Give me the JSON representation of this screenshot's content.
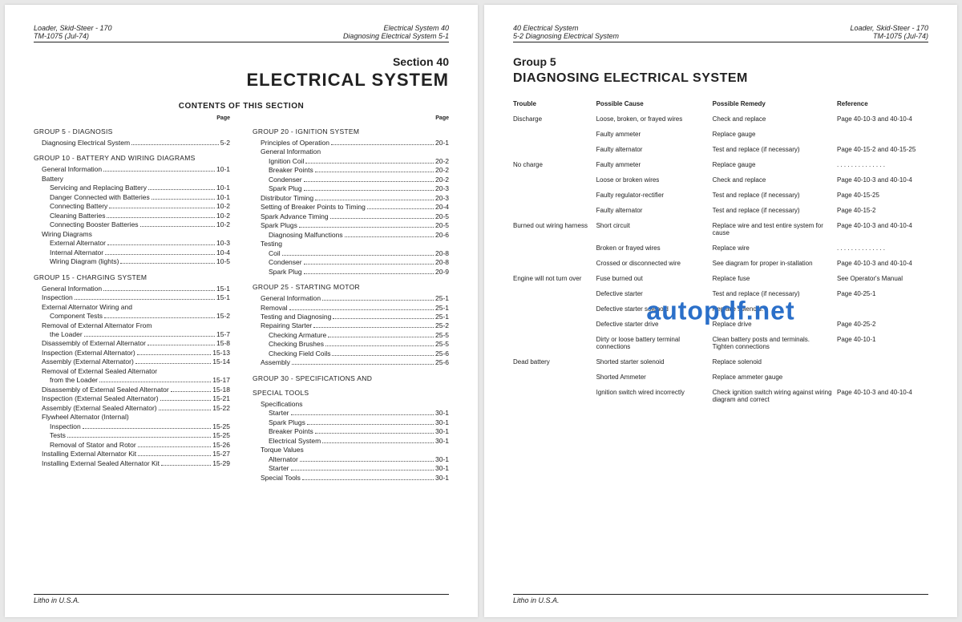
{
  "watermark": "autopdf.net",
  "left": {
    "hdr_tl1": "Loader, Skid-Steer - 170",
    "hdr_tl2": "TM-1075   (Jul-74)",
    "hdr_tr1": "Electrical System    40",
    "hdr_tr2": "Diagnosing Electrical System    5-1",
    "section_no": "Section 40",
    "section_title": "ELECTRICAL SYSTEM",
    "contents_label": "CONTENTS OF THIS SECTION",
    "page_label": "Page",
    "footer": "Litho in U.S.A.",
    "col1": [
      {
        "type": "group",
        "label": "GROUP  5 - DIAGNOSIS"
      },
      {
        "type": "line",
        "indent": 0,
        "label": "Diagnosing Electrical System",
        "pg": "5-2"
      },
      {
        "type": "group",
        "label": "GROUP 10 - BATTERY AND WIRING DIAGRAMS"
      },
      {
        "type": "line",
        "indent": 0,
        "label": "General Information",
        "pg": "10-1"
      },
      {
        "type": "line",
        "indent": 0,
        "label": "Battery",
        "pg": ""
      },
      {
        "type": "line",
        "indent": 1,
        "label": "Servicing and Replacing Battery",
        "pg": "10-1"
      },
      {
        "type": "line",
        "indent": 1,
        "label": "Danger Connected with Batteries",
        "pg": "10-1"
      },
      {
        "type": "line",
        "indent": 1,
        "label": "Connecting Battery",
        "pg": "10-2"
      },
      {
        "type": "line",
        "indent": 1,
        "label": "Cleaning Batteries",
        "pg": "10-2"
      },
      {
        "type": "line",
        "indent": 1,
        "label": "Connecting Booster Batteries",
        "pg": "10-2"
      },
      {
        "type": "line",
        "indent": 0,
        "label": "Wiring Diagrams",
        "pg": ""
      },
      {
        "type": "line",
        "indent": 1,
        "label": "External Alternator",
        "pg": "10-3"
      },
      {
        "type": "line",
        "indent": 1,
        "label": "Internal Alternator",
        "pg": "10-4"
      },
      {
        "type": "line",
        "indent": 1,
        "label": "Wiring Diagram (lights)",
        "pg": "10-5"
      },
      {
        "type": "group",
        "label": "GROUP 15 - CHARGING SYSTEM"
      },
      {
        "type": "line",
        "indent": 0,
        "label": "General Information",
        "pg": "15-1"
      },
      {
        "type": "line",
        "indent": 0,
        "label": "Inspection",
        "pg": "15-1"
      },
      {
        "type": "line",
        "indent": 0,
        "label": "External Alternator Wiring and",
        "pg": ""
      },
      {
        "type": "line",
        "indent": 1,
        "label": "Component Tests",
        "pg": "15-2"
      },
      {
        "type": "line",
        "indent": 0,
        "label": "Removal of External Alternator From",
        "pg": ""
      },
      {
        "type": "line",
        "indent": 1,
        "label": "the Loader",
        "pg": "15-7"
      },
      {
        "type": "line",
        "indent": 0,
        "label": "Disassembly of External Alternator",
        "pg": "15-8"
      },
      {
        "type": "line",
        "indent": 0,
        "label": "Inspection (External Alternator)",
        "pg": "15-13"
      },
      {
        "type": "line",
        "indent": 0,
        "label": "Assembly (External Alternator)",
        "pg": "15-14"
      },
      {
        "type": "line",
        "indent": 0,
        "label": "Removal of External Sealed Alternator",
        "pg": ""
      },
      {
        "type": "line",
        "indent": 1,
        "label": "from the Loader",
        "pg": "15-17"
      },
      {
        "type": "line",
        "indent": 0,
        "label": "Disassembly of External Sealed Alternator",
        "pg": "15-18"
      },
      {
        "type": "line",
        "indent": 0,
        "label": "Inspection (External Sealed Alternator)",
        "pg": "15-21"
      },
      {
        "type": "line",
        "indent": 0,
        "label": "Assembly (External Sealed Alternator)",
        "pg": "15-22"
      },
      {
        "type": "line",
        "indent": 0,
        "label": "Flywheel Alternator (Internal)",
        "pg": ""
      },
      {
        "type": "line",
        "indent": 1,
        "label": "Inspection",
        "pg": "15-25"
      },
      {
        "type": "line",
        "indent": 1,
        "label": "Tests",
        "pg": "15-25"
      },
      {
        "type": "line",
        "indent": 1,
        "label": "Removal of Stator and Rotor",
        "pg": "15-26"
      },
      {
        "type": "line",
        "indent": 0,
        "label": "Installing External Alternator Kit",
        "pg": "15-27"
      },
      {
        "type": "line",
        "indent": 0,
        "label": "Installing External Sealed Alternator Kit",
        "pg": "15-29"
      }
    ],
    "col2": [
      {
        "type": "group",
        "label": "GROUP 20 - IGNITION SYSTEM"
      },
      {
        "type": "line",
        "indent": 0,
        "label": "Principles of Operation",
        "pg": "20-1"
      },
      {
        "type": "line",
        "indent": 0,
        "label": "General Information",
        "pg": ""
      },
      {
        "type": "line",
        "indent": 1,
        "label": "Ignition Coil",
        "pg": "20-2"
      },
      {
        "type": "line",
        "indent": 1,
        "label": "Breaker Points",
        "pg": "20-2"
      },
      {
        "type": "line",
        "indent": 1,
        "label": "Condenser",
        "pg": "20-2"
      },
      {
        "type": "line",
        "indent": 1,
        "label": "Spark Plug",
        "pg": "20-3"
      },
      {
        "type": "line",
        "indent": 0,
        "label": "Distributor Timing",
        "pg": "20-3"
      },
      {
        "type": "line",
        "indent": 0,
        "label": "Setting of Breaker Points to Timing",
        "pg": "20-4"
      },
      {
        "type": "line",
        "indent": 0,
        "label": "Spark Advance Timing",
        "pg": "20-5"
      },
      {
        "type": "line",
        "indent": 0,
        "label": "Spark Plugs",
        "pg": "20-5"
      },
      {
        "type": "line",
        "indent": 1,
        "label": "Diagnosing Malfunctions",
        "pg": "20-6"
      },
      {
        "type": "line",
        "indent": 0,
        "label": "Testing",
        "pg": ""
      },
      {
        "type": "line",
        "indent": 1,
        "label": "Coil",
        "pg": "20-8"
      },
      {
        "type": "line",
        "indent": 1,
        "label": "Condenser",
        "pg": "20-8"
      },
      {
        "type": "line",
        "indent": 1,
        "label": "Spark Plug",
        "pg": "20-9"
      },
      {
        "type": "group",
        "label": "GROUP 25 - STARTING MOTOR"
      },
      {
        "type": "line",
        "indent": 0,
        "label": "General Information",
        "pg": "25-1"
      },
      {
        "type": "line",
        "indent": 0,
        "label": "Removal",
        "pg": "25-1"
      },
      {
        "type": "line",
        "indent": 0,
        "label": "Testing and Diagnosing",
        "pg": "25-1"
      },
      {
        "type": "line",
        "indent": 0,
        "label": "Repairing Starter",
        "pg": "25-2"
      },
      {
        "type": "line",
        "indent": 1,
        "label": "Checking Armature",
        "pg": "25-5"
      },
      {
        "type": "line",
        "indent": 1,
        "label": "Checking Brushes",
        "pg": "25-5"
      },
      {
        "type": "line",
        "indent": 1,
        "label": "Checking Field Coils",
        "pg": "25-6"
      },
      {
        "type": "line",
        "indent": 0,
        "label": "Assembly",
        "pg": "25-6"
      },
      {
        "type": "group",
        "label": "GROUP 30 - SPECIFICATIONS AND"
      },
      {
        "type": "group",
        "label": "          SPECIAL TOOLS"
      },
      {
        "type": "line",
        "indent": 0,
        "label": "Specifications",
        "pg": ""
      },
      {
        "type": "line",
        "indent": 1,
        "label": "Starter",
        "pg": "30-1"
      },
      {
        "type": "line",
        "indent": 1,
        "label": "Spark Plugs",
        "pg": "30-1"
      },
      {
        "type": "line",
        "indent": 1,
        "label": "Breaker Points",
        "pg": "30-1"
      },
      {
        "type": "line",
        "indent": 1,
        "label": "Electrical System",
        "pg": "30-1"
      },
      {
        "type": "line",
        "indent": 0,
        "label": "Torque Values",
        "pg": ""
      },
      {
        "type": "line",
        "indent": 1,
        "label": "Alternator",
        "pg": "30-1"
      },
      {
        "type": "line",
        "indent": 1,
        "label": "Starter",
        "pg": "30-1"
      },
      {
        "type": "line",
        "indent": 0,
        "label": "Special Tools",
        "pg": "30-1"
      }
    ]
  },
  "right": {
    "hdr_tl1": "40    Electrical System",
    "hdr_tl2": "5-2   Diagnosing Electrical System",
    "hdr_tr1": "Loader, Skid-Steer - 170",
    "hdr_tr2": "TM-1075   (Jul-74)",
    "grp_no": "Group 5",
    "grp_title": "DIAGNOSING ELECTRICAL SYSTEM",
    "footer": "Litho in U.S.A.",
    "head": [
      "Trouble",
      "Possible Cause",
      "Possible Remedy",
      "Reference"
    ],
    "rows": [
      [
        "Discharge",
        "Loose, broken, or frayed wires",
        "Check and replace",
        "Page 40-10-3 and 40-10-4"
      ],
      [
        "",
        "Faulty ammeter",
        "Replace gauge",
        ""
      ],
      [
        "",
        "Faulty alternator",
        "Test and replace (if necessary)",
        "Page 40-15-2 and 40-15-25"
      ],
      [
        "No charge",
        "Faulty ammeter",
        "Replace gauge",
        ". . . . . . . . . . . . . ."
      ],
      [
        "",
        "Loose or broken wires",
        "Check and replace",
        "Page 40-10-3 and 40-10-4"
      ],
      [
        "",
        "Faulty regulator-rectifier",
        "Test and replace (if necessary)",
        "Page 40-15-25"
      ],
      [
        "",
        "Faulty alternator",
        "Test and replace (if necessary)",
        "Page 40-15-2"
      ],
      [
        "Burned out wiring harness",
        "Short circuit",
        "Replace wire and test entire system for cause",
        "Page 40-10-3 and 40-10-4"
      ],
      [
        "",
        "Broken or frayed wires",
        "Replace wire",
        ". . . . . . . . . . . . . ."
      ],
      [
        "",
        "Crossed or disconnected wire",
        "See diagram for proper in-stallation",
        "Page 40-10-3 and 40-10-4"
      ],
      [
        "Engine will not turn over",
        "Fuse burned out",
        "Replace fuse",
        "See Operator's Manual"
      ],
      [
        "",
        "Defective starter",
        "Test and replace (if necessary)",
        "Page 40-25-1"
      ],
      [
        "",
        "Defective starter solenoid",
        "Replace solenoid.",
        ""
      ],
      [
        "",
        "Defective starter drive",
        "Replace drive",
        "Page 40-25-2"
      ],
      [
        "",
        "Dirty or loose battery terminal connections",
        "Clean battery posts and terminals. Tighten connections",
        "Page 40-10-1"
      ],
      [
        "Dead battery",
        "Shorted starter solenoid",
        "Replace solenoid",
        ""
      ],
      [
        "",
        "Shorted Ammeter",
        "Replace ammeter gauge",
        ""
      ],
      [
        "",
        "Ignition switch wired incorrectly",
        "Check ignition switch wiring against wiring diagram and correct",
        "Page 40-10-3 and 40-10-4"
      ]
    ]
  }
}
